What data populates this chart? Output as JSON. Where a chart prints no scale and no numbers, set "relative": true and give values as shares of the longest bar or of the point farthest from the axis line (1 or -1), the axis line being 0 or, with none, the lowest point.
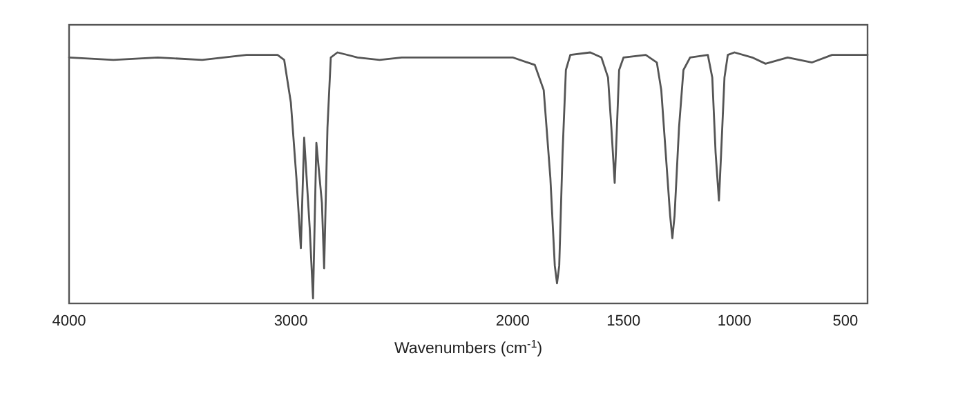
{
  "chart_data": {
    "type": "line",
    "relative": true,
    "xlabel": "Wavenumbers (cm$^{-1}$)",
    "xlim": [
      4000,
      400
    ],
    "xticks": [
      4000,
      3000,
      2000,
      1500,
      1000,
      500
    ],
    "x": [
      4000,
      3800,
      3600,
      3400,
      3200,
      3060,
      3030,
      3000,
      2975,
      2955,
      2940,
      2915,
      2900,
      2885,
      2860,
      2850,
      2835,
      2820,
      2790,
      2700,
      2600,
      2500,
      2200,
      2000,
      1900,
      1860,
      1830,
      1810,
      1800,
      1790,
      1775,
      1760,
      1740,
      1650,
      1600,
      1570,
      1555,
      1540,
      1530,
      1520,
      1500,
      1400,
      1350,
      1330,
      1310,
      1290,
      1280,
      1270,
      1250,
      1230,
      1200,
      1120,
      1100,
      1085,
      1070,
      1060,
      1045,
      1030,
      1000,
      920,
      860,
      760,
      650,
      560,
      400
    ],
    "series": [
      {
        "color": "#555555",
        "values": [
          0.98,
          0.97,
          0.98,
          0.97,
          0.99,
          0.99,
          0.97,
          0.8,
          0.5,
          0.22,
          0.66,
          0.3,
          0.02,
          0.64,
          0.4,
          0.14,
          0.7,
          0.98,
          1.0,
          0.98,
          0.97,
          0.98,
          0.98,
          0.98,
          0.95,
          0.85,
          0.5,
          0.15,
          0.08,
          0.15,
          0.6,
          0.93,
          0.99,
          1.0,
          0.98,
          0.9,
          0.7,
          0.48,
          0.7,
          0.93,
          0.98,
          0.99,
          0.96,
          0.85,
          0.6,
          0.35,
          0.26,
          0.35,
          0.7,
          0.93,
          0.98,
          0.99,
          0.9,
          0.6,
          0.41,
          0.6,
          0.9,
          0.99,
          1.0,
          0.98,
          0.955,
          0.98,
          0.96,
          0.99,
          0.99
        ]
      }
    ],
    "marker": "none",
    "line_style": "solid",
    "grid": false
  }
}
